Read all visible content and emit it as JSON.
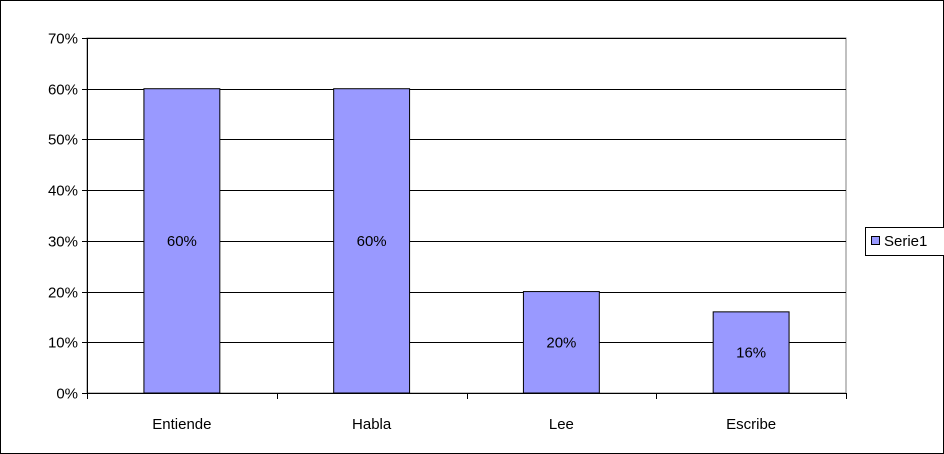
{
  "chart_data": {
    "type": "bar",
    "categories": [
      "Entiende",
      "Habla",
      "Lee",
      "Escribe"
    ],
    "series": [
      {
        "name": "Serie1",
        "values": [
          0.6,
          0.6,
          0.2,
          0.16
        ],
        "color": "#9999ff"
      }
    ],
    "data_labels": [
      "60%",
      "60%",
      "20%",
      "16%"
    ],
    "y_ticks": [
      "0%",
      "10%",
      "20%",
      "30%",
      "40%",
      "50%",
      "60%",
      "70%"
    ],
    "ylim": [
      0,
      0.7
    ],
    "y_format": "percent",
    "grid": true,
    "legend_position": "right",
    "title": "",
    "xlabel": "",
    "ylabel": ""
  }
}
